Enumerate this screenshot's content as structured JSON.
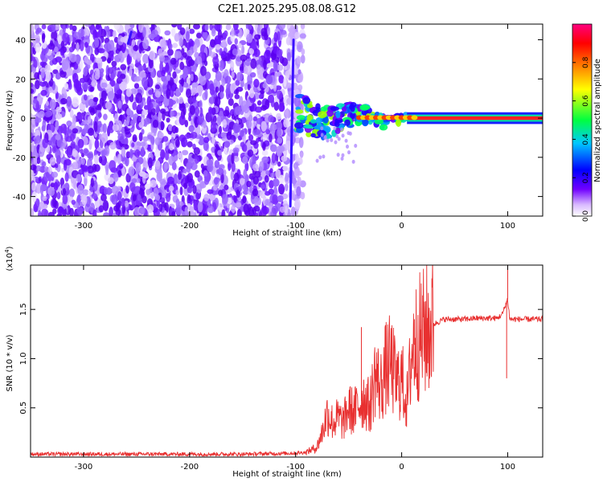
{
  "figure_title": "C2E1.2025.295.08.08.G12",
  "chart_data": [
    {
      "type": "heatmap",
      "title": "C2E1.2025.295.08.08.G12",
      "xlabel": "Height of straight line (km)",
      "ylabel": "Frequency (Hz)",
      "xlim": [
        -350,
        133
      ],
      "ylim": [
        -50,
        48
      ],
      "xticks": [
        -300,
        -200,
        -100,
        0,
        100
      ],
      "xtick_labels": [
        "-300",
        "-200",
        "-100",
        "0",
        "100"
      ],
      "yticks": [
        -40,
        -20,
        0,
        20,
        40
      ],
      "ytick_labels": [
        "-40",
        "-20",
        "0",
        "20",
        "40"
      ],
      "grid": false,
      "colorbar": {
        "label": "Normalized spectral amplitude",
        "range": [
          0,
          1
        ],
        "ticks": [
          0.0,
          0.2,
          0.4,
          0.6,
          0.8
        ],
        "tick_labels": [
          "0.0",
          "0.2",
          "0.4",
          "0.6",
          "0.8"
        ],
        "colors": [
          "#ffffff",
          "#7000ff",
          "#0000ff",
          "#00c8ff",
          "#00ff40",
          "#ffff00",
          "#ff8000",
          "#ff0000",
          "#ff0080"
        ]
      },
      "regions": [
        {
          "x_range": [
            -350,
            -93
          ],
          "freq_range": [
            -50,
            48
          ],
          "amplitude": "low, broadband noise"
        },
        {
          "x_range": [
            -105,
            -100
          ],
          "freq_range": [
            -45,
            40
          ],
          "amplitude": "medium, streak"
        },
        {
          "x_range": [
            -100,
            5
          ],
          "freq_range": [
            -20,
            10
          ],
          "amplitude": "medium-high, converging clusters"
        },
        {
          "x_range": [
            5,
            133
          ],
          "freq_range": [
            -1,
            1
          ],
          "amplitude": "high, tone at 0 Hz"
        }
      ],
      "tone_frequency": 0
    },
    {
      "type": "line",
      "xlabel": "Height of straight line (km)",
      "ylabel": "SNR (10 * v/v)",
      "y_multiplier_label": "(x10",
      "y_multiplier_exponent": "4",
      "xlim": [
        -350,
        133
      ],
      "ylim": [
        0,
        1.95
      ],
      "xticks": [
        -300,
        -200,
        -100,
        0,
        100
      ],
      "xtick_labels": [
        "-300",
        "-200",
        "-100",
        "0",
        "100"
      ],
      "yticks": [
        0.5,
        1.0,
        1.5
      ],
      "ytick_labels": [
        "0.5",
        "1.0",
        "1.5"
      ],
      "grid": false,
      "series_color": "#e83030",
      "x": [
        -350,
        -300,
        -250,
        -200,
        -150,
        -100,
        -90,
        -80,
        -75,
        -70,
        -65,
        -60,
        -55,
        -50,
        -45,
        -40,
        -35,
        -30,
        -25,
        -20,
        -15,
        -10,
        -5,
        0,
        5,
        10,
        15,
        20,
        25,
        30,
        40,
        50,
        60,
        70,
        80,
        90,
        95,
        98,
        100,
        102,
        105,
        110,
        120,
        133
      ],
      "y": [
        0.03,
        0.03,
        0.03,
        0.03,
        0.03,
        0.04,
        0.05,
        0.1,
        0.25,
        0.45,
        0.35,
        0.4,
        0.35,
        0.5,
        0.45,
        0.55,
        0.6,
        0.5,
        0.85,
        0.7,
        0.9,
        0.95,
        0.75,
        0.8,
        0.55,
        1.1,
        1.2,
        1.25,
        1.3,
        1.35,
        1.4,
        1.4,
        1.4,
        1.41,
        1.41,
        1.41,
        1.45,
        1.55,
        1.6,
        1.4,
        1.4,
        1.4,
        1.4,
        1.4
      ],
      "spikes": [
        {
          "x": -38,
          "y": 1.32
        },
        {
          "x": 12,
          "y": 1.4
        },
        {
          "x": 100,
          "y": 1.95
        },
        {
          "x": 99,
          "y": 0.8
        }
      ]
    }
  ]
}
